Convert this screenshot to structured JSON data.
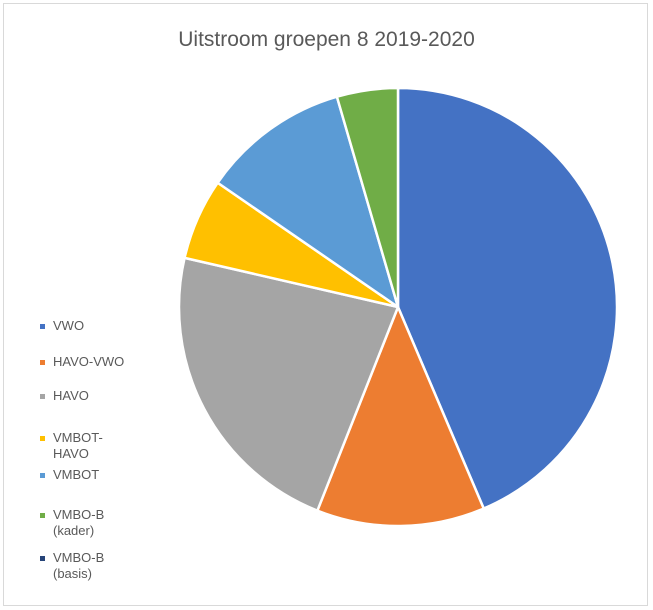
{
  "chart_data": {
    "type": "pie",
    "title": "Uitstroom groepen 8 2019-2020",
    "legend_position": "left",
    "slices": [
      {
        "label": "VWO",
        "value": 43.6,
        "color": "#4472C4"
      },
      {
        "label": "HAVO-VWO",
        "value": 12.4,
        "color": "#ED7D31"
      },
      {
        "label": "HAVO",
        "value": 22.6,
        "color": "#A5A5A5"
      },
      {
        "label": "VMBOT-HAVO",
        "value": 6.0,
        "color": "#FFC000"
      },
      {
        "label": "VMBOT",
        "value": 10.9,
        "color": "#5B9BD5"
      },
      {
        "label": "VMBO-B (kader)",
        "value": 4.5,
        "color": "#70AD47"
      },
      {
        "label": "VMBO-B (basis)",
        "value": 0,
        "color": "#264478"
      }
    ]
  },
  "legend": {
    "items": [
      {
        "line1": "VWO",
        "line2": ""
      },
      {
        "line1": "HAVO-VWO",
        "line2": ""
      },
      {
        "line1": "HAVO",
        "line2": ""
      },
      {
        "line1": "VMBOT-",
        "line2": "HAVO"
      },
      {
        "line1": "VMBOT",
        "line2": ""
      },
      {
        "line1": "VMBO-B",
        "line2": "(kader)"
      },
      {
        "line1": "VMBO-B",
        "line2": "(basis)"
      }
    ]
  }
}
